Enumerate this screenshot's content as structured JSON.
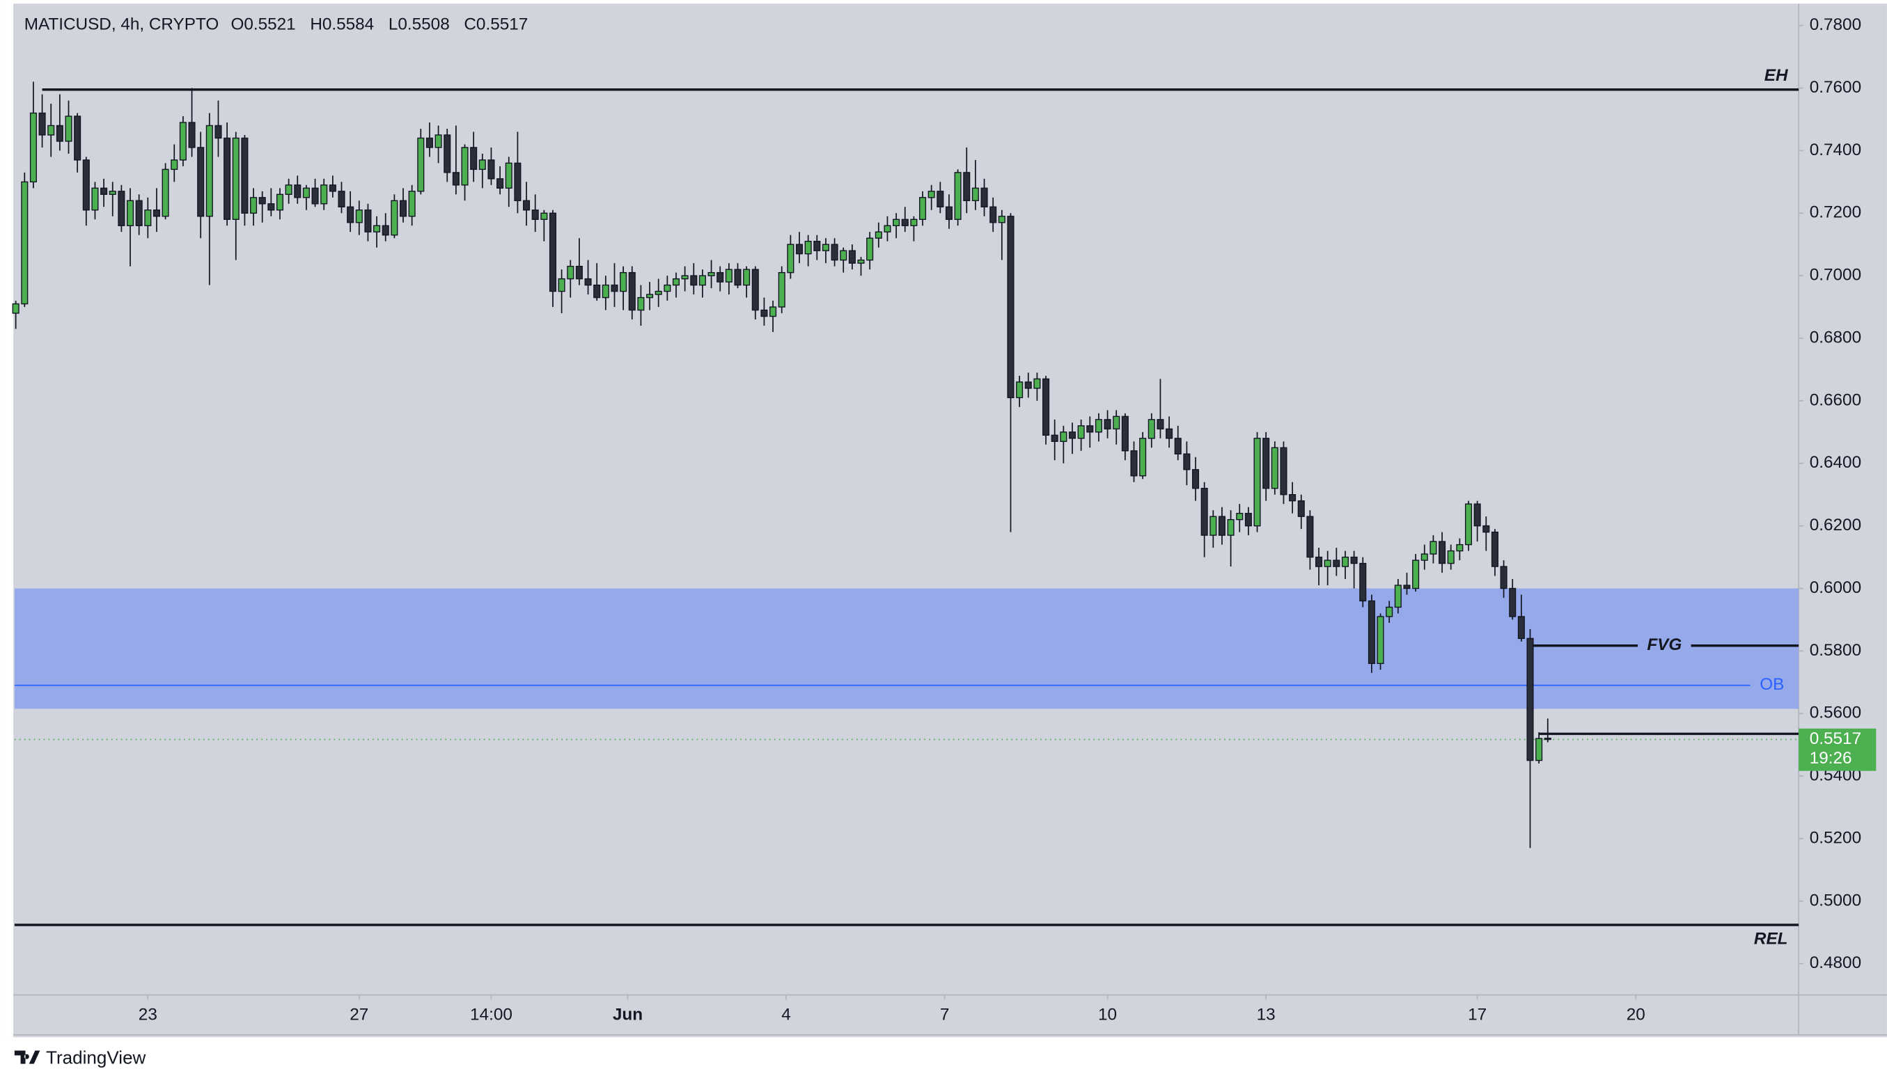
{
  "chart_data": {
    "type": "candlestick",
    "symbol": "MATICUSD, 4h, CRYPTO",
    "ohlc_labels": [
      "O",
      "H",
      "L",
      "C"
    ],
    "up_color": "#4caf50",
    "down_color": "#2a2e39",
    "ylim": [
      0.47,
      0.787
    ],
    "yticks": [
      {
        "value": 0.78,
        "label": "0.7800"
      },
      {
        "value": 0.76,
        "label": "0.7600"
      },
      {
        "value": 0.74,
        "label": "0.7400"
      },
      {
        "value": 0.72,
        "label": "0.7200"
      },
      {
        "value": 0.7,
        "label": "0.7000"
      },
      {
        "value": 0.68,
        "label": "0.6800"
      },
      {
        "value": 0.66,
        "label": "0.6600"
      },
      {
        "value": 0.64,
        "label": "0.6400"
      },
      {
        "value": 0.62,
        "label": "0.6200"
      },
      {
        "value": 0.6,
        "label": "0.6000"
      },
      {
        "value": 0.58,
        "label": "0.5800"
      },
      {
        "value": 0.56,
        "label": "0.5600"
      },
      {
        "value": 0.54,
        "label": "0.5400"
      },
      {
        "value": 0.52,
        "label": "0.5200"
      },
      {
        "value": 0.5,
        "label": "0.5000"
      },
      {
        "value": 0.48,
        "label": "0.4800"
      }
    ],
    "xlim": [
      -0.14,
      202.5
    ],
    "xticks": [
      {
        "value": 15,
        "label": "23"
      },
      {
        "value": 39,
        "label": "27"
      },
      {
        "value": 54,
        "label": "14:00"
      },
      {
        "value": 69.5,
        "label": "Jun"
      },
      {
        "value": 87.5,
        "label": "4"
      },
      {
        "value": 105.5,
        "label": "7"
      },
      {
        "value": 124,
        "label": "10"
      },
      {
        "value": 142,
        "label": "13"
      },
      {
        "value": 166,
        "label": "17"
      },
      {
        "value": 184,
        "label": "20"
      }
    ],
    "zone": {
      "top": 0.6,
      "bottom": 0.5615,
      "color": "#8fa4ec"
    },
    "levels": [
      {
        "label": "EH",
        "value": 0.7595,
        "from": 3,
        "color": "#131722"
      },
      {
        "label": "REL",
        "value": 0.4924,
        "from": -0.14,
        "color": "#131722"
      },
      {
        "label": "FVG",
        "value": 0.5817,
        "from": 172,
        "color": "#131722"
      },
      {
        "label": "OB",
        "value": 0.569,
        "from": -0.14,
        "color": "#2962ff"
      }
    ],
    "ray": {
      "value": 0.5535,
      "from": 173
    },
    "countdown": "19:26",
    "brand": "TradingView",
    "ohlc": [
      [
        0.688,
        0.692,
        0.683,
        0.691
      ],
      [
        0.691,
        0.733,
        0.69,
        0.73
      ],
      [
        0.73,
        0.762,
        0.728,
        0.752
      ],
      [
        0.752,
        0.758,
        0.741,
        0.745
      ],
      [
        0.745,
        0.755,
        0.738,
        0.748
      ],
      [
        0.748,
        0.758,
        0.74,
        0.743
      ],
      [
        0.743,
        0.756,
        0.739,
        0.751
      ],
      [
        0.751,
        0.752,
        0.733,
        0.737
      ],
      [
        0.737,
        0.738,
        0.716,
        0.721
      ],
      [
        0.721,
        0.73,
        0.718,
        0.728
      ],
      [
        0.728,
        0.731,
        0.722,
        0.726
      ],
      [
        0.726,
        0.73,
        0.719,
        0.727
      ],
      [
        0.727,
        0.729,
        0.714,
        0.716
      ],
      [
        0.716,
        0.728,
        0.703,
        0.724
      ],
      [
        0.724,
        0.726,
        0.713,
        0.716
      ],
      [
        0.716,
        0.725,
        0.712,
        0.721
      ],
      [
        0.721,
        0.728,
        0.714,
        0.719
      ],
      [
        0.719,
        0.736,
        0.718,
        0.734
      ],
      [
        0.734,
        0.742,
        0.73,
        0.737
      ],
      [
        0.737,
        0.751,
        0.735,
        0.749
      ],
      [
        0.749,
        0.76,
        0.738,
        0.741
      ],
      [
        0.741,
        0.746,
        0.712,
        0.719
      ],
      [
        0.719,
        0.752,
        0.697,
        0.748
      ],
      [
        0.748,
        0.756,
        0.738,
        0.744
      ],
      [
        0.744,
        0.749,
        0.716,
        0.718
      ],
      [
        0.718,
        0.746,
        0.705,
        0.744
      ],
      [
        0.744,
        0.745,
        0.716,
        0.72
      ],
      [
        0.72,
        0.728,
        0.716,
        0.725
      ],
      [
        0.725,
        0.727,
        0.717,
        0.723
      ],
      [
        0.723,
        0.728,
        0.719,
        0.721
      ],
      [
        0.721,
        0.728,
        0.718,
        0.726
      ],
      [
        0.726,
        0.731,
        0.723,
        0.729
      ],
      [
        0.729,
        0.732,
        0.723,
        0.725
      ],
      [
        0.725,
        0.729,
        0.721,
        0.728
      ],
      [
        0.728,
        0.731,
        0.722,
        0.723
      ],
      [
        0.723,
        0.731,
        0.721,
        0.729
      ],
      [
        0.729,
        0.732,
        0.725,
        0.727
      ],
      [
        0.727,
        0.73,
        0.72,
        0.722
      ],
      [
        0.722,
        0.727,
        0.714,
        0.717
      ],
      [
        0.717,
        0.724,
        0.713,
        0.721
      ],
      [
        0.721,
        0.723,
        0.711,
        0.714
      ],
      [
        0.714,
        0.719,
        0.709,
        0.716
      ],
      [
        0.716,
        0.72,
        0.711,
        0.713
      ],
      [
        0.713,
        0.726,
        0.712,
        0.724
      ],
      [
        0.724,
        0.728,
        0.717,
        0.719
      ],
      [
        0.719,
        0.729,
        0.716,
        0.727
      ],
      [
        0.727,
        0.747,
        0.726,
        0.744
      ],
      [
        0.744,
        0.749,
        0.738,
        0.741
      ],
      [
        0.741,
        0.748,
        0.736,
        0.745
      ],
      [
        0.745,
        0.747,
        0.73,
        0.733
      ],
      [
        0.733,
        0.748,
        0.726,
        0.729
      ],
      [
        0.729,
        0.742,
        0.724,
        0.741
      ],
      [
        0.741,
        0.746,
        0.73,
        0.734
      ],
      [
        0.734,
        0.739,
        0.728,
        0.737
      ],
      [
        0.737,
        0.741,
        0.729,
        0.731
      ],
      [
        0.731,
        0.735,
        0.726,
        0.728
      ],
      [
        0.728,
        0.738,
        0.722,
        0.736
      ],
      [
        0.736,
        0.746,
        0.72,
        0.724
      ],
      [
        0.724,
        0.73,
        0.716,
        0.721
      ],
      [
        0.721,
        0.726,
        0.714,
        0.718
      ],
      [
        0.718,
        0.721,
        0.711,
        0.72
      ],
      [
        0.72,
        0.721,
        0.69,
        0.695
      ],
      [
        0.695,
        0.702,
        0.688,
        0.699
      ],
      [
        0.699,
        0.705,
        0.693,
        0.703
      ],
      [
        0.703,
        0.712,
        0.697,
        0.699
      ],
      [
        0.699,
        0.705,
        0.694,
        0.697
      ],
      [
        0.697,
        0.704,
        0.692,
        0.693
      ],
      [
        0.693,
        0.7,
        0.689,
        0.697
      ],
      [
        0.697,
        0.704,
        0.69,
        0.695
      ],
      [
        0.695,
        0.703,
        0.689,
        0.701
      ],
      [
        0.701,
        0.703,
        0.686,
        0.689
      ],
      [
        0.689,
        0.697,
        0.684,
        0.693
      ],
      [
        0.693,
        0.698,
        0.689,
        0.694
      ],
      [
        0.694,
        0.699,
        0.69,
        0.695
      ],
      [
        0.695,
        0.7,
        0.692,
        0.697
      ],
      [
        0.697,
        0.701,
        0.693,
        0.699
      ],
      [
        0.699,
        0.703,
        0.695,
        0.7
      ],
      [
        0.7,
        0.704,
        0.694,
        0.697
      ],
      [
        0.697,
        0.702,
        0.693,
        0.7
      ],
      [
        0.7,
        0.705,
        0.696,
        0.701
      ],
      [
        0.701,
        0.703,
        0.695,
        0.698
      ],
      [
        0.698,
        0.704,
        0.694,
        0.702
      ],
      [
        0.702,
        0.704,
        0.696,
        0.697
      ],
      [
        0.697,
        0.703,
        0.693,
        0.702
      ],
      [
        0.702,
        0.703,
        0.686,
        0.689
      ],
      [
        0.689,
        0.693,
        0.684,
        0.687
      ],
      [
        0.687,
        0.692,
        0.682,
        0.69
      ],
      [
        0.69,
        0.703,
        0.688,
        0.701
      ],
      [
        0.701,
        0.713,
        0.699,
        0.71
      ],
      [
        0.71,
        0.714,
        0.704,
        0.707
      ],
      [
        0.707,
        0.713,
        0.703,
        0.711
      ],
      [
        0.711,
        0.713,
        0.705,
        0.708
      ],
      [
        0.708,
        0.712,
        0.704,
        0.71
      ],
      [
        0.71,
        0.712,
        0.703,
        0.705
      ],
      [
        0.705,
        0.709,
        0.701,
        0.708
      ],
      [
        0.708,
        0.71,
        0.702,
        0.704
      ],
      [
        0.704,
        0.706,
        0.7,
        0.705
      ],
      [
        0.705,
        0.714,
        0.702,
        0.712
      ],
      [
        0.712,
        0.717,
        0.709,
        0.714
      ],
      [
        0.714,
        0.719,
        0.711,
        0.716
      ],
      [
        0.716,
        0.72,
        0.712,
        0.718
      ],
      [
        0.718,
        0.722,
        0.714,
        0.716
      ],
      [
        0.716,
        0.719,
        0.711,
        0.718
      ],
      [
        0.718,
        0.727,
        0.716,
        0.725
      ],
      [
        0.725,
        0.729,
        0.721,
        0.727
      ],
      [
        0.727,
        0.73,
        0.72,
        0.722
      ],
      [
        0.722,
        0.726,
        0.715,
        0.718
      ],
      [
        0.718,
        0.734,
        0.716,
        0.733
      ],
      [
        0.733,
        0.741,
        0.72,
        0.724
      ],
      [
        0.724,
        0.737,
        0.721,
        0.728
      ],
      [
        0.728,
        0.731,
        0.719,
        0.722
      ],
      [
        0.722,
        0.725,
        0.714,
        0.717
      ],
      [
        0.717,
        0.721,
        0.705,
        0.719
      ],
      [
        0.719,
        0.72,
        0.618,
        0.661
      ],
      [
        0.661,
        0.668,
        0.658,
        0.666
      ],
      [
        0.666,
        0.669,
        0.661,
        0.664
      ],
      [
        0.664,
        0.669,
        0.66,
        0.667
      ],
      [
        0.667,
        0.668,
        0.646,
        0.649
      ],
      [
        0.649,
        0.654,
        0.641,
        0.647
      ],
      [
        0.647,
        0.652,
        0.64,
        0.65
      ],
      [
        0.65,
        0.653,
        0.643,
        0.648
      ],
      [
        0.648,
        0.654,
        0.644,
        0.652
      ],
      [
        0.652,
        0.655,
        0.645,
        0.65
      ],
      [
        0.65,
        0.656,
        0.647,
        0.654
      ],
      [
        0.654,
        0.657,
        0.648,
        0.651
      ],
      [
        0.651,
        0.657,
        0.646,
        0.655
      ],
      [
        0.655,
        0.656,
        0.641,
        0.644
      ],
      [
        0.644,
        0.647,
        0.634,
        0.636
      ],
      [
        0.636,
        0.65,
        0.635,
        0.648
      ],
      [
        0.648,
        0.656,
        0.645,
        0.654
      ],
      [
        0.654,
        0.667,
        0.648,
        0.651
      ],
      [
        0.651,
        0.655,
        0.645,
        0.648
      ],
      [
        0.648,
        0.652,
        0.641,
        0.643
      ],
      [
        0.643,
        0.647,
        0.633,
        0.638
      ],
      [
        0.638,
        0.642,
        0.628,
        0.632
      ],
      [
        0.632,
        0.634,
        0.61,
        0.617
      ],
      [
        0.617,
        0.625,
        0.613,
        0.623
      ],
      [
        0.623,
        0.626,
        0.614,
        0.617
      ],
      [
        0.617,
        0.625,
        0.607,
        0.622
      ],
      [
        0.622,
        0.627,
        0.618,
        0.624
      ],
      [
        0.624,
        0.626,
        0.617,
        0.62
      ],
      [
        0.62,
        0.65,
        0.618,
        0.648
      ],
      [
        0.648,
        0.65,
        0.628,
        0.632
      ],
      [
        0.632,
        0.647,
        0.63,
        0.645
      ],
      [
        0.645,
        0.647,
        0.627,
        0.63
      ],
      [
        0.63,
        0.634,
        0.624,
        0.628
      ],
      [
        0.628,
        0.63,
        0.619,
        0.623
      ],
      [
        0.623,
        0.625,
        0.606,
        0.61
      ],
      [
        0.61,
        0.613,
        0.601,
        0.607
      ],
      [
        0.607,
        0.612,
        0.601,
        0.609
      ],
      [
        0.609,
        0.613,
        0.604,
        0.607
      ],
      [
        0.607,
        0.612,
        0.603,
        0.61
      ],
      [
        0.61,
        0.612,
        0.6,
        0.608
      ],
      [
        0.608,
        0.61,
        0.594,
        0.596
      ],
      [
        0.596,
        0.598,
        0.573,
        0.576
      ],
      [
        0.576,
        0.592,
        0.574,
        0.591
      ],
      [
        0.591,
        0.596,
        0.589,
        0.594
      ],
      [
        0.594,
        0.603,
        0.592,
        0.601
      ],
      [
        0.601,
        0.605,
        0.598,
        0.6
      ],
      [
        0.6,
        0.611,
        0.599,
        0.609
      ],
      [
        0.609,
        0.614,
        0.606,
        0.611
      ],
      [
        0.611,
        0.617,
        0.608,
        0.615
      ],
      [
        0.615,
        0.618,
        0.605,
        0.608
      ],
      [
        0.608,
        0.614,
        0.606,
        0.612
      ],
      [
        0.612,
        0.616,
        0.609,
        0.614
      ],
      [
        0.614,
        0.628,
        0.612,
        0.627
      ],
      [
        0.627,
        0.628,
        0.615,
        0.62
      ],
      [
        0.62,
        0.623,
        0.612,
        0.618
      ],
      [
        0.618,
        0.619,
        0.604,
        0.607
      ],
      [
        0.607,
        0.609,
        0.597,
        0.6
      ],
      [
        0.6,
        0.603,
        0.59,
        0.591
      ],
      [
        0.591,
        0.598,
        0.583,
        0.584
      ],
      [
        0.584,
        0.587,
        0.517,
        0.545
      ],
      [
        0.545,
        0.554,
        0.544,
        0.552
      ],
      [
        0.5521,
        0.5584,
        0.5508,
        0.5517
      ]
    ]
  }
}
